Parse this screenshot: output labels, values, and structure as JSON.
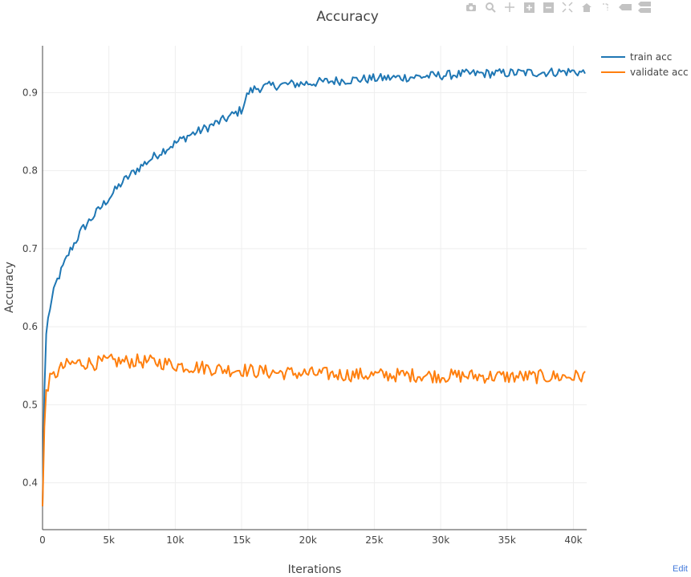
{
  "chart_data": {
    "type": "line",
    "title": "Accuracy",
    "xlabel": "Iterations",
    "ylabel": "Accuracy",
    "xlim": [
      0,
      41000
    ],
    "ylim": [
      0.34,
      0.96
    ],
    "x_ticks": [
      0,
      5000,
      10000,
      15000,
      20000,
      25000,
      30000,
      35000,
      40000
    ],
    "x_tick_labels": [
      "0",
      "5k",
      "10k",
      "15k",
      "20k",
      "25k",
      "30k",
      "35k",
      "40k"
    ],
    "y_ticks": [
      0.4,
      0.5,
      0.6,
      0.7,
      0.8,
      0.9
    ],
    "y_tick_labels": [
      "0.4",
      "0.5",
      "0.6",
      "0.7",
      "0.8",
      "0.9"
    ],
    "grid": true,
    "legend_position": "top-right",
    "series": [
      {
        "name": "train acc",
        "color": "#1f77b4",
        "x": [
          0,
          200,
          500,
          1000,
          1500,
          2000,
          2500,
          3000,
          3500,
          4000,
          5000,
          6000,
          7000,
          8000,
          9000,
          10000,
          11000,
          12000,
          13000,
          14000,
          15000,
          15500,
          16000,
          17000,
          18000,
          20000,
          22000,
          25000,
          28000,
          30000,
          32000,
          35000,
          38000,
          40000,
          41000
        ],
        "y": [
          0.37,
          0.58,
          0.62,
          0.655,
          0.675,
          0.695,
          0.71,
          0.725,
          0.735,
          0.745,
          0.765,
          0.785,
          0.8,
          0.813,
          0.825,
          0.835,
          0.845,
          0.852,
          0.86,
          0.868,
          0.878,
          0.9,
          0.905,
          0.908,
          0.91,
          0.912,
          0.915,
          0.918,
          0.92,
          0.922,
          0.924,
          0.925,
          0.926,
          0.927,
          0.925
        ]
      },
      {
        "name": "validate acc",
        "color": "#ff7f0e",
        "x": [
          0,
          200,
          500,
          1000,
          1500,
          2000,
          3000,
          4000,
          5000,
          6000,
          7000,
          8000,
          9000,
          10000,
          11000,
          12000,
          13000,
          14000,
          15000,
          16000,
          18000,
          20000,
          22000,
          25000,
          28000,
          30000,
          32000,
          35000,
          38000,
          40000,
          41000
        ],
        "y": [
          0.37,
          0.515,
          0.53,
          0.54,
          0.548,
          0.552,
          0.554,
          0.553,
          0.556,
          0.555,
          0.556,
          0.555,
          0.554,
          0.551,
          0.549,
          0.548,
          0.546,
          0.545,
          0.545,
          0.543,
          0.541,
          0.54,
          0.539,
          0.538,
          0.538,
          0.537,
          0.537,
          0.536,
          0.536,
          0.536,
          0.537
        ]
      }
    ]
  },
  "modebar": {
    "icons": [
      "camera-icon",
      "zoom-icon",
      "pan-icon",
      "zoom-in-icon",
      "zoom-out-icon",
      "autoscale-icon",
      "reset-axes-icon",
      "spike-lines-icon",
      "hover-closest-icon",
      "hover-compare-icon"
    ]
  },
  "edit_link": "Edit"
}
